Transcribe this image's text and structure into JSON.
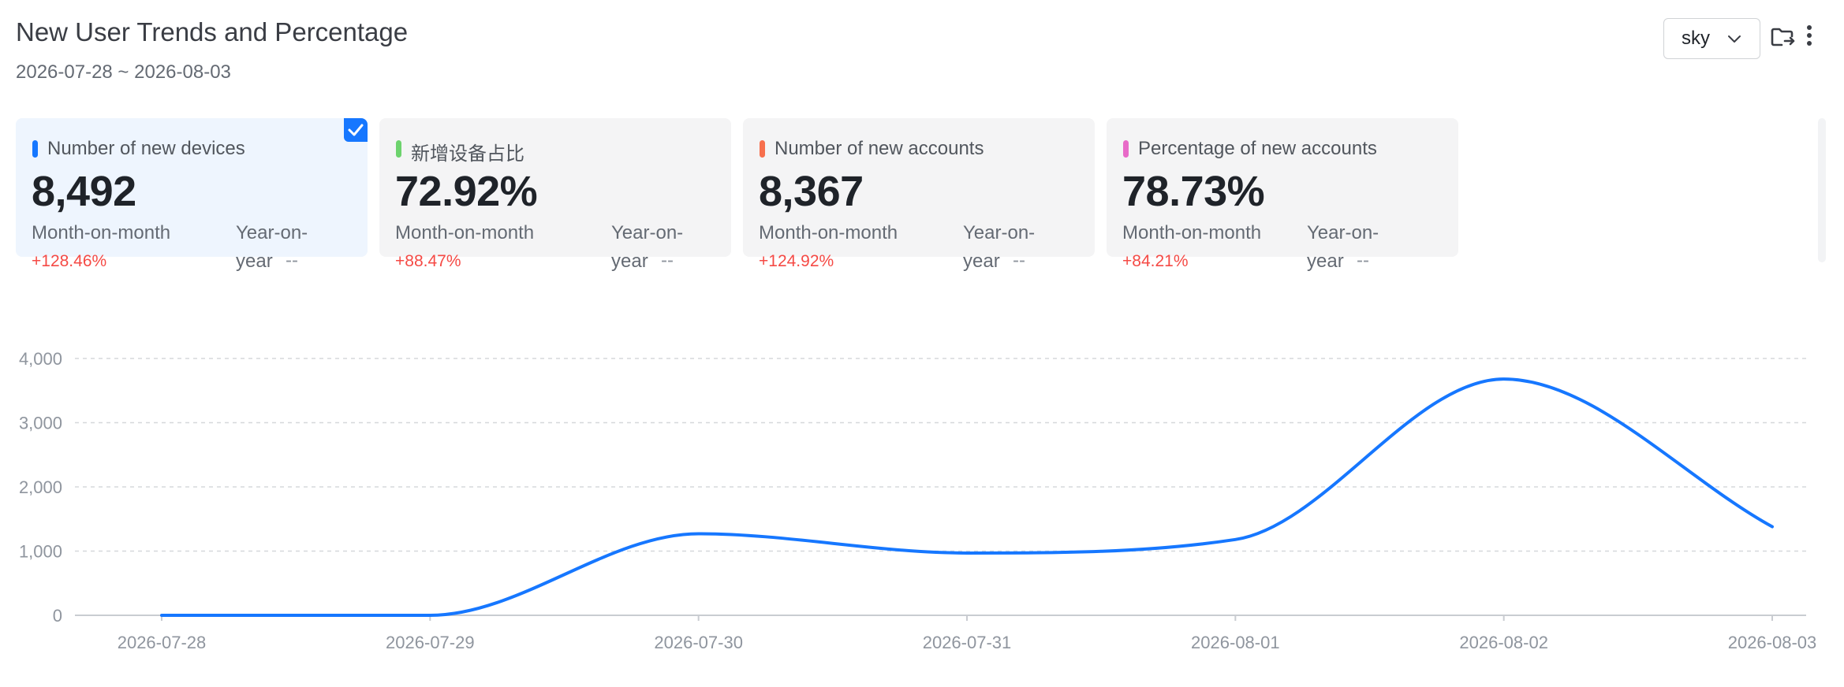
{
  "header": {
    "title": "New User Trends and Percentage",
    "date_range": "2026-07-28 ~ 2026-08-03"
  },
  "toolbar": {
    "select_value": "sky",
    "icons": [
      "folder-export-icon",
      "more-vertical-icon"
    ]
  },
  "cards": [
    {
      "label": "Number of new devices",
      "value": "8,492",
      "mom_label": "Month-on-month",
      "mom_value": "+128.46%",
      "yoy_label_1": "Year-on-",
      "yoy_label_2": "year",
      "yoy_value": "--",
      "color": "#1677ff",
      "selected": true
    },
    {
      "label": "新增设备占比",
      "value": "72.92%",
      "mom_label": "Month-on-month",
      "mom_value": "+88.47%",
      "yoy_label_1": "Year-on-",
      "yoy_label_2": "year",
      "yoy_value": "--",
      "color": "#6dd36d",
      "selected": false
    },
    {
      "label": "Number of new accounts",
      "value": "8,367",
      "mom_label": "Month-on-month",
      "mom_value": "+124.92%",
      "yoy_label_1": "Year-on-",
      "yoy_label_2": "year",
      "yoy_value": "--",
      "color": "#f76f4d",
      "selected": false
    },
    {
      "label": "Percentage of new accounts",
      "value": "78.73%",
      "mom_label": "Month-on-month",
      "mom_value": "+84.21%",
      "yoy_label_1": "Year-on-",
      "yoy_label_2": "year",
      "yoy_value": "--",
      "color": "#e86ac8",
      "selected": false
    }
  ],
  "chart_data": {
    "type": "line",
    "x": [
      "2026-07-28",
      "2026-07-29",
      "2026-07-30",
      "2026-07-31",
      "2026-08-01",
      "2026-08-02",
      "2026-08-03"
    ],
    "series": [
      {
        "values": [
          0,
          0,
          1270,
          970,
          1180,
          3680,
          1380
        ],
        "color": "#1677ff"
      }
    ],
    "yticks": [
      "0",
      "1,000",
      "2,000",
      "3,000",
      "4,000"
    ],
    "ylim": [
      0,
      4000
    ],
    "grid": true,
    "smooth": true
  }
}
